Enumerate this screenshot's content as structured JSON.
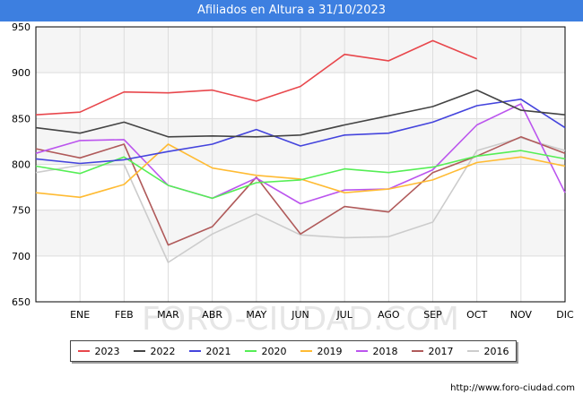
{
  "chart_data": {
    "type": "line",
    "title": "Afiliados en Altura a 31/10/2023",
    "categories": [
      "",
      "ENE",
      "FEB",
      "MAR",
      "ABR",
      "MAY",
      "JUN",
      "JUL",
      "AGO",
      "SEP",
      "OCT",
      "NOV",
      "DIC"
    ],
    "ylim": [
      650,
      950
    ],
    "yticks": [
      650,
      700,
      750,
      800,
      850,
      900,
      950
    ],
    "grid": true,
    "legend_position": "bottom",
    "watermark": "FORO-CIUDAD.COM",
    "series": [
      {
        "name": "2023",
        "color": "#e8474c",
        "values": [
          854,
          857,
          879,
          878,
          881,
          869,
          885,
          920,
          913,
          935,
          915,
          null,
          null
        ]
      },
      {
        "name": "2022",
        "color": "#444444",
        "values": [
          840,
          834,
          846,
          830,
          831,
          830,
          832,
          843,
          853,
          863,
          881,
          859,
          854
        ]
      },
      {
        "name": "2021",
        "color": "#4444dd",
        "values": [
          806,
          801,
          805,
          814,
          822,
          838,
          820,
          832,
          834,
          846,
          864,
          871,
          840
        ]
      },
      {
        "name": "2020",
        "color": "#55ee55",
        "values": [
          798,
          790,
          808,
          777,
          763,
          780,
          783,
          795,
          791,
          797,
          809,
          815,
          806
        ]
      },
      {
        "name": "2019",
        "color": "#ffbb33",
        "values": [
          769,
          764,
          778,
          822,
          796,
          788,
          784,
          769,
          773,
          783,
          802,
          808,
          798
        ]
      },
      {
        "name": "2018",
        "color": "#bb55ee",
        "values": [
          812,
          826,
          827,
          777,
          763,
          785,
          757,
          772,
          773,
          794,
          843,
          866,
          769
        ]
      },
      {
        "name": "2017",
        "color": "#b05a5a",
        "values": [
          817,
          807,
          822,
          712,
          732,
          786,
          724,
          754,
          748,
          791,
          809,
          830,
          812
        ]
      },
      {
        "name": "2016",
        "color": "#cccccc",
        "values": [
          791,
          799,
          800,
          693,
          724,
          746,
          723,
          720,
          721,
          737,
          815,
          829,
          815
        ]
      }
    ]
  },
  "footer": {
    "url": "http://www.foro-ciudad.com"
  }
}
